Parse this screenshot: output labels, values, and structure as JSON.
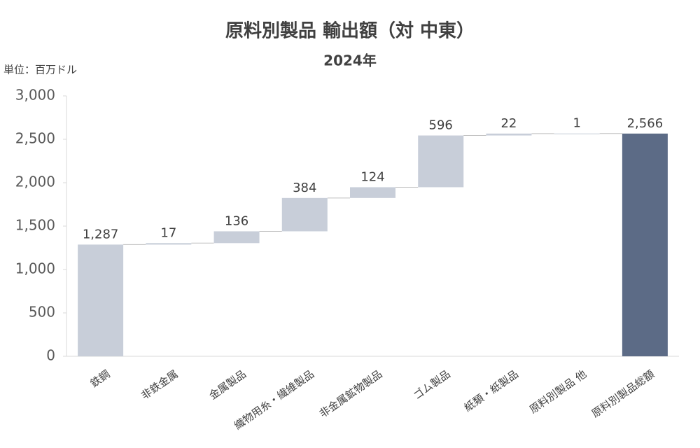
{
  "chart_data": {
    "type": "waterfall",
    "title": "原料別製品 輸出額（対 中東）",
    "subtitle": "2024年",
    "unit_label": "単位：百万ドル",
    "categories": [
      "鉄鋼",
      "非鉄金属",
      "金属製品",
      "織物用糸・繊維製品",
      "非金属鉱物製品",
      "ゴム製品",
      "紙類・紙製品",
      "原料別製品 他",
      "原料別製品総額"
    ],
    "values": [
      1287,
      17,
      136,
      384,
      124,
      596,
      22,
      1,
      2566
    ],
    "value_labels": [
      "1,287",
      "17",
      "136",
      "384",
      "124",
      "596",
      "22",
      "1",
      "2,566"
    ],
    "measure": [
      "relative",
      "relative",
      "relative",
      "relative",
      "relative",
      "relative",
      "relative",
      "relative",
      "total"
    ],
    "colors": [
      "#c8ced9",
      "#c8ced9",
      "#c8ced9",
      "#c8ced9",
      "#c8ced9",
      "#c8ced9",
      "#c8ced9",
      "#c8ced9",
      "#5c6b86"
    ],
    "ylim": [
      0,
      3000
    ],
    "yticks": [
      0,
      500,
      {
        "value": 1000,
        "label": "1,000"
      },
      {
        "value": 1500,
        "label": "1,500"
      },
      {
        "value": 2000,
        "label": "2,000"
      },
      {
        "value": 2500,
        "label": "2,500"
      },
      {
        "value": 3000,
        "label": "3,000"
      }
    ],
    "grid": false
  }
}
